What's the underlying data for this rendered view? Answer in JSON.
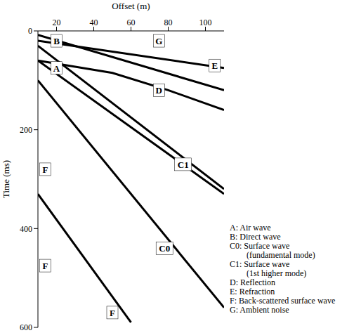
{
  "chart_data": {
    "type": "line",
    "x_label": "Offset (m)",
    "y_label": "Time (ms)",
    "xlim": [
      10,
      110
    ],
    "xticks": [
      20,
      40,
      60,
      80,
      100
    ],
    "ylim": [
      600,
      0
    ],
    "yticks": [
      0,
      200,
      400,
      600
    ],
    "grid": false,
    "series": [
      {
        "name": "A",
        "color": "#000000",
        "x": [
          10,
          110
        ],
        "values": [
          30,
          320
        ]
      },
      {
        "name": "B",
        "color": "#000000",
        "x": [
          10,
          110
        ],
        "values": [
          8,
          120
        ]
      },
      {
        "name": "C0",
        "color": "#000000",
        "x": [
          10,
          110
        ],
        "values": [
          100,
          560
        ]
      },
      {
        "name": "C1",
        "color": "#000000",
        "x": [
          10,
          110
        ],
        "values": [
          60,
          330
        ]
      },
      {
        "name": "D",
        "color": "#000000",
        "x": [
          10,
          50,
          80,
          110
        ],
        "values": [
          60,
          85,
          120,
          160
        ]
      },
      {
        "name": "E",
        "color": "#000000",
        "x": [
          10,
          110
        ],
        "values": [
          20,
          75
        ]
      },
      {
        "name": "F",
        "color": "#000000",
        "x": [
          60,
          10
        ],
        "values": [
          590,
          330
        ]
      }
    ],
    "annotations": [
      {
        "text": "B",
        "x": 20,
        "y": 20
      },
      {
        "text": "G",
        "x": 75,
        "y": 20
      },
      {
        "text": "A",
        "x": 20,
        "y": 75
      },
      {
        "text": "E",
        "x": 105,
        "y": 70
      },
      {
        "text": "D",
        "x": 75,
        "y": 120
      },
      {
        "text": "C1",
        "x": 88,
        "y": 270
      },
      {
        "text": "F",
        "x": 14,
        "y": 280
      },
      {
        "text": "C0",
        "x": 78,
        "y": 440
      },
      {
        "text": "F",
        "x": 14,
        "y": 475
      },
      {
        "text": "F",
        "x": 50,
        "y": 570
      }
    ],
    "key": [
      "A: Air wave",
      "B: Direct wave",
      "C0: Surface wave (fundamental mode)",
      "C1: Surface wave (1st higher mode)",
      "D: Reflection",
      "E: Refraction",
      "F: Back-scattered surface wave",
      "G: Ambient noise"
    ]
  }
}
